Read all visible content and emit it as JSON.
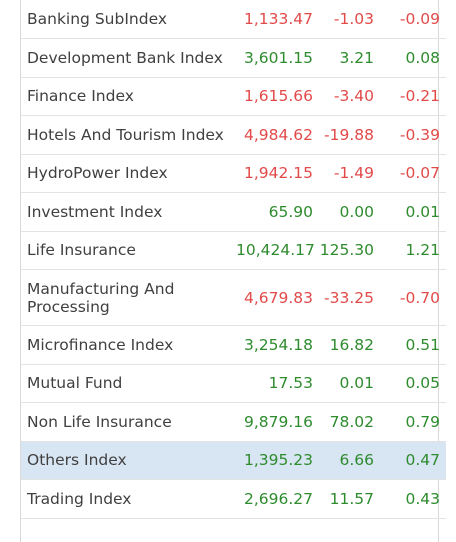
{
  "indices": [
    {
      "name": "Banking SubIndex",
      "value": "1,133.47",
      "change": "-1.03",
      "percent": "-0.09",
      "trend": "down"
    },
    {
      "name": "Development Bank Index",
      "value": "3,601.15",
      "change": "3.21",
      "percent": "0.08",
      "trend": "up"
    },
    {
      "name": "Finance Index",
      "value": "1,615.66",
      "change": "-3.40",
      "percent": "-0.21",
      "trend": "down"
    },
    {
      "name": "Hotels And Tourism Index",
      "value": "4,984.62",
      "change": "-19.88",
      "percent": "-0.39",
      "trend": "down"
    },
    {
      "name": "HydroPower Index",
      "value": "1,942.15",
      "change": "-1.49",
      "percent": "-0.07",
      "trend": "down"
    },
    {
      "name": "Investment Index",
      "value": "65.90",
      "change": "0.00",
      "percent": "0.01",
      "trend": "up"
    },
    {
      "name": "Life Insurance",
      "value": "10,424.17",
      "change": "125.30",
      "percent": "1.21",
      "trend": "up"
    },
    {
      "name": "Manufacturing And Processing",
      "value": "4,679.83",
      "change": "-33.25",
      "percent": "-0.70",
      "trend": "down"
    },
    {
      "name": "Microfinance Index",
      "value": "3,254.18",
      "change": "16.82",
      "percent": "0.51",
      "trend": "up"
    },
    {
      "name": "Mutual Fund",
      "value": "17.53",
      "change": "0.01",
      "percent": "0.05",
      "trend": "up"
    },
    {
      "name": "Non Life Insurance",
      "value": "9,879.16",
      "change": "78.02",
      "percent": "0.79",
      "trend": "up"
    },
    {
      "name": "Others Index",
      "value": "1,395.23",
      "change": "6.66",
      "percent": "0.47",
      "trend": "up"
    },
    {
      "name": "Trading Index",
      "value": "2,696.27",
      "change": "11.57",
      "percent": "0.43",
      "trend": "up"
    }
  ],
  "colors": {
    "up": "#2e8b2e",
    "down": "#e24a4a",
    "highlight": "#d8e5f3"
  }
}
